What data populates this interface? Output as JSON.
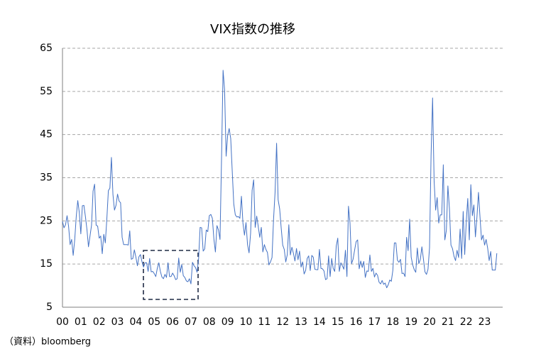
{
  "chart_data": {
    "type": "line",
    "title": "VIX指数の推移",
    "source": "（資料）bloomberg",
    "categories": [
      "00",
      null,
      null,
      null,
      null,
      null,
      null,
      null,
      null,
      null,
      null,
      null,
      "01",
      null,
      null,
      null,
      null,
      null,
      null,
      null,
      null,
      null,
      null,
      null,
      "02",
      null,
      null,
      null,
      null,
      null,
      null,
      null,
      null,
      null,
      null,
      null,
      "03",
      null,
      null,
      null,
      null,
      null,
      null,
      null,
      null,
      null,
      null,
      null,
      "04",
      null,
      null,
      null,
      null,
      null,
      null,
      null,
      null,
      null,
      null,
      null,
      "05",
      null,
      null,
      null,
      null,
      null,
      null,
      null,
      null,
      null,
      null,
      null,
      "06",
      null,
      null,
      null,
      null,
      null,
      null,
      null,
      null,
      null,
      null,
      null,
      "07",
      null,
      null,
      null,
      null,
      null,
      null,
      null,
      null,
      null,
      null,
      null,
      "08",
      null,
      null,
      null,
      null,
      null,
      null,
      null,
      null,
      null,
      null,
      null,
      "09",
      null,
      null,
      null,
      null,
      null,
      null,
      null,
      null,
      null,
      null,
      null,
      "10",
      null,
      null,
      null,
      null,
      null,
      null,
      null,
      null,
      null,
      null,
      null,
      "11",
      null,
      null,
      null,
      null,
      null,
      null,
      null,
      null,
      null,
      null,
      null,
      "12",
      null,
      null,
      null,
      null,
      null,
      null,
      null,
      null,
      null,
      null,
      null,
      "13",
      null,
      null,
      null,
      null,
      null,
      null,
      null,
      null,
      null,
      null,
      null,
      "14",
      null,
      null,
      null,
      null,
      null,
      null,
      null,
      null,
      null,
      null,
      null,
      "15",
      null,
      null,
      null,
      null,
      null,
      null,
      null,
      null,
      null,
      null,
      null,
      "16",
      null,
      null,
      null,
      null,
      null,
      null,
      null,
      null,
      null,
      null,
      null,
      "17",
      null,
      null,
      null,
      null,
      null,
      null,
      null,
      null,
      null,
      null,
      null,
      "18",
      null,
      null,
      null,
      null,
      null,
      null,
      null,
      null,
      null,
      null,
      null,
      "19",
      null,
      null,
      null,
      null,
      null,
      null,
      null,
      null,
      null,
      null,
      null,
      "20",
      null,
      null,
      null,
      null,
      null,
      null,
      null,
      null,
      null,
      null,
      null,
      "21",
      null,
      null,
      null,
      null,
      null,
      null,
      null,
      null,
      null,
      null,
      null,
      "22",
      null,
      null,
      null,
      null,
      null,
      null,
      null,
      null,
      null,
      null,
      null,
      "23",
      null,
      null,
      null,
      null,
      null,
      null,
      null,
      null
    ],
    "values": [
      24.9,
      23.4,
      24.1,
      26.2,
      23.7,
      19.5,
      20.7,
      17.0,
      20.6,
      26.0,
      29.7,
      26.9,
      22.0,
      28.5,
      28.6,
      26.0,
      23.0,
      19.0,
      21.5,
      24.0,
      31.9,
      33.5,
      24.0,
      23.8,
      21.0,
      21.5,
      17.4,
      21.9,
      19.9,
      25.4,
      32.0,
      32.6,
      39.7,
      31.1,
      27.5,
      28.6,
      31.2,
      29.6,
      29.2,
      21.2,
      19.5,
      19.5,
      19.5,
      19.4,
      22.7,
      16.1,
      16.3,
      18.3,
      16.6,
      14.6,
      16.7,
      17.2,
      15.5,
      14.3,
      15.3,
      15.3,
      13.3,
      16.3,
      13.2,
      13.3,
      12.8,
      12.1,
      14.0,
      15.3,
      13.3,
      12.0,
      11.6,
      12.6,
      11.9,
      15.3,
      12.1,
      12.1,
      12.9,
      12.3,
      11.4,
      11.6,
      16.4,
      13.1,
      14.9,
      12.3,
      11.9,
      11.1,
      10.9,
      11.6,
      10.4,
      15.4,
      14.6,
      14.2,
      13.1,
      16.2,
      23.5,
      23.4,
      18.0,
      18.5,
      22.9,
      22.5,
      26.2,
      26.5,
      25.6,
      20.8,
      17.8,
      23.9,
      22.9,
      20.7,
      39.4,
      59.9,
      55.3,
      40.0,
      44.8,
      46.4,
      44.1,
      36.5,
      28.9,
      26.4,
      25.9,
      26.0,
      25.6,
      30.7,
      24.5,
      21.7,
      24.6,
      19.5,
      17.6,
      22.1,
      32.1,
      34.5,
      23.5,
      26.1,
      23.7,
      21.2,
      23.5,
      17.8,
      19.5,
      18.4,
      17.7,
      14.8,
      15.5,
      16.5,
      25.3,
      31.6,
      43.0,
      29.9,
      27.8,
      23.4,
      19.4,
      18.4,
      15.5,
      17.2,
      24.1,
      17.1,
      18.9,
      17.5,
      15.7,
      18.6,
      16.0,
      18.0,
      14.3,
      15.5,
      12.7,
      13.5,
      16.3,
      16.9,
      13.5,
      17.0,
      16.6,
      13.8,
      13.7,
      13.7,
      18.4,
      14.0,
      13.9,
      13.4,
      11.4,
      11.6,
      16.9,
      12.1,
      16.3,
      14.0,
      13.3,
      19.2,
      21.0,
      13.3,
      15.3,
      14.6,
      13.8,
      18.2,
      12.1,
      28.4,
      24.5,
      15.1,
      16.1,
      18.2,
      20.2,
      20.6,
      13.9,
      15.7,
      14.2,
      15.6,
      11.9,
      13.4,
      13.3,
      17.1,
      13.3,
      14.0,
      12.0,
      12.9,
      12.4,
      10.8,
      10.4,
      11.2,
      10.3,
      10.6,
      9.5,
      10.2,
      11.3,
      11.0,
      13.5,
      19.9,
      19.9,
      15.9,
      15.4,
      16.1,
      12.8,
      12.9,
      12.1,
      21.2,
      18.1,
      25.4,
      16.6,
      14.8,
      13.7,
      13.1,
      18.7,
      15.1,
      16.1,
      19.0,
      16.2,
      13.2,
      12.6,
      13.8,
      18.8,
      40.1,
      53.5,
      34.2,
      27.5,
      30.4,
      24.5,
      26.4,
      26.4,
      38.0,
      20.6,
      22.8,
      33.1,
      27.9,
      19.4,
      18.6,
      16.8,
      15.8,
      18.2,
      16.5,
      23.1,
      16.3,
      27.2,
      17.2,
      24.8,
      30.2,
      20.6,
      33.4,
      26.2,
      28.7,
      21.3,
      25.9,
      31.6,
      25.9,
      20.6,
      21.7,
      19.4,
      20.7,
      18.7,
      15.8,
      17.9,
      13.6,
      13.6,
      13.6,
      17.5
    ],
    "color": "#4472c4",
    "ylim": [
      5,
      65
    ],
    "yticks": [
      5,
      15,
      25,
      35,
      45,
      55,
      65
    ],
    "grid": true
  }
}
